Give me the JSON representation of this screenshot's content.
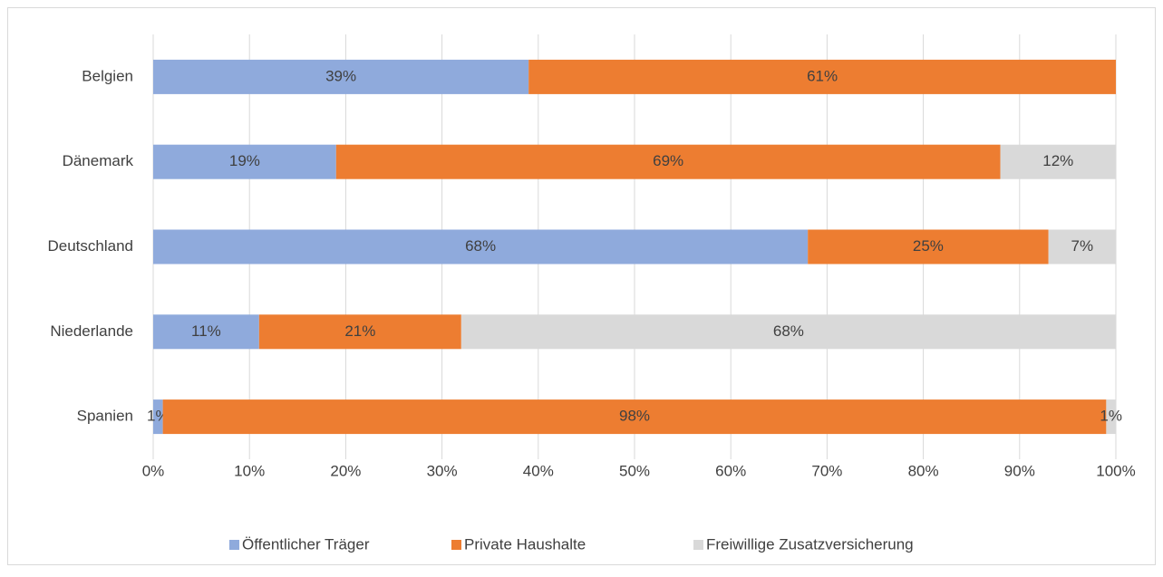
{
  "chart_data": {
    "type": "bar",
    "orientation": "horizontal",
    "stacked": true,
    "categories": [
      "Belgien",
      "Dänemark",
      "Deutschland",
      "Niederlande",
      "Spanien"
    ],
    "series": [
      {
        "name": "Öffentlicher Träger",
        "color": "#8faadc",
        "values": [
          39,
          19,
          68,
          11,
          1
        ],
        "value_labels": [
          "39%",
          "19%",
          "68%",
          "11%",
          "1%"
        ]
      },
      {
        "name": "Private Haushalte",
        "color": "#ed7d31",
        "values": [
          61,
          69,
          25,
          21,
          98
        ],
        "value_labels": [
          "61%",
          "69%",
          "25%",
          "21%",
          "98%"
        ]
      },
      {
        "name": "Freiwillige Zusatzversicherung",
        "color": "#d9d9d9",
        "values": [
          null,
          12,
          7,
          68,
          1
        ],
        "value_labels": [
          null,
          "12%",
          "7%",
          "68%",
          "1%"
        ]
      }
    ],
    "xlim": [
      0,
      100
    ],
    "xticks": [
      {
        "value": 0,
        "label": "0%"
      },
      {
        "value": 10,
        "label": "10%"
      },
      {
        "value": 20,
        "label": "20%"
      },
      {
        "value": 30,
        "label": "30%"
      },
      {
        "value": 40,
        "label": "40%"
      },
      {
        "value": 50,
        "label": "50%"
      },
      {
        "value": 60,
        "label": "60%"
      },
      {
        "value": 70,
        "label": "70%"
      },
      {
        "value": 80,
        "label": "80%"
      },
      {
        "value": 90,
        "label": "90%"
      },
      {
        "value": 100,
        "label": "100%"
      }
    ],
    "grid": true,
    "legend": "bottom"
  }
}
